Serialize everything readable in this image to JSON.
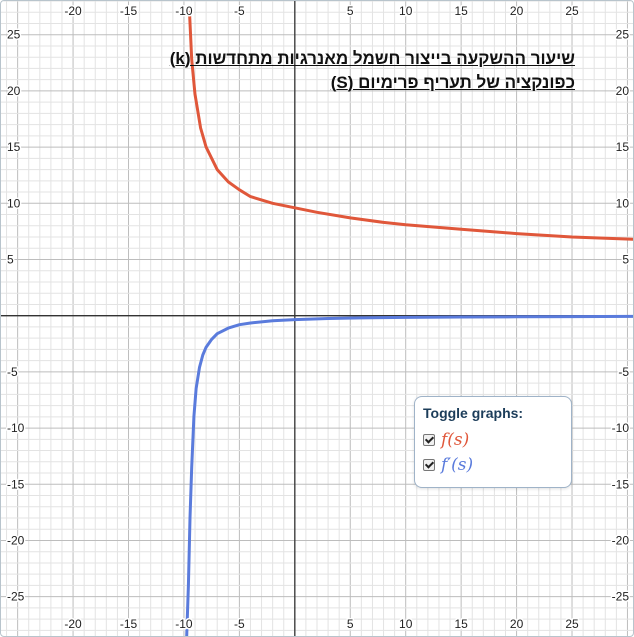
{
  "chart_data": {
    "type": "line",
    "title_lines": [
      "שיעור ההשקעה בייצור חשמל מאנרגיות מתחדשות (k)",
      "כפונקציה של תעריף פרימיום (S)"
    ],
    "xlim": [
      -26.5,
      30.5
    ],
    "ylim": [
      -28.5,
      28
    ],
    "x_ticks": [
      -20,
      -15,
      -10,
      -5,
      5,
      10,
      15,
      20,
      25
    ],
    "y_ticks": [
      25,
      20,
      15,
      10,
      5,
      -5,
      -10,
      -15,
      -20,
      -25
    ],
    "grid": true,
    "legend": {
      "heading": "Toggle graphs:",
      "placement": "bottom-right"
    },
    "series": [
      {
        "name": "f(s)",
        "color": "#e0573a",
        "x": [
          -9.5,
          -9.3,
          -9.0,
          -8.5,
          -8.0,
          -7.0,
          -6.0,
          -5.0,
          -4.0,
          -2.0,
          0.0,
          2.0,
          5.0,
          8.0,
          10.0,
          15.0,
          20.0,
          25.0,
          30.5
        ],
        "y": [
          27.0,
          22.8,
          19.7,
          16.7,
          15.0,
          13.0,
          11.9,
          11.2,
          10.6,
          10.0,
          9.6,
          9.2,
          8.7,
          8.3,
          8.1,
          7.7,
          7.3,
          7.0,
          6.8
        ]
      },
      {
        "name": "f′(s)",
        "color": "#5a7bdc",
        "x": [
          -9.75,
          -9.6,
          -9.45,
          -9.3,
          -9.1,
          -8.9,
          -8.6,
          -8.3,
          -8.0,
          -7.5,
          -7.0,
          -6.0,
          -5.0,
          -4.0,
          -2.0,
          0.0,
          3.0,
          6.0,
          10.0,
          15.0,
          20.0,
          25.0,
          30.5
        ],
        "y": [
          -28.5,
          -24.0,
          -18.0,
          -13.5,
          -9.0,
          -6.5,
          -4.6,
          -3.5,
          -2.8,
          -2.1,
          -1.6,
          -1.1,
          -0.8,
          -0.65,
          -0.45,
          -0.35,
          -0.25,
          -0.2,
          -0.15,
          -0.12,
          -0.1,
          -0.08,
          -0.06
        ]
      }
    ]
  }
}
